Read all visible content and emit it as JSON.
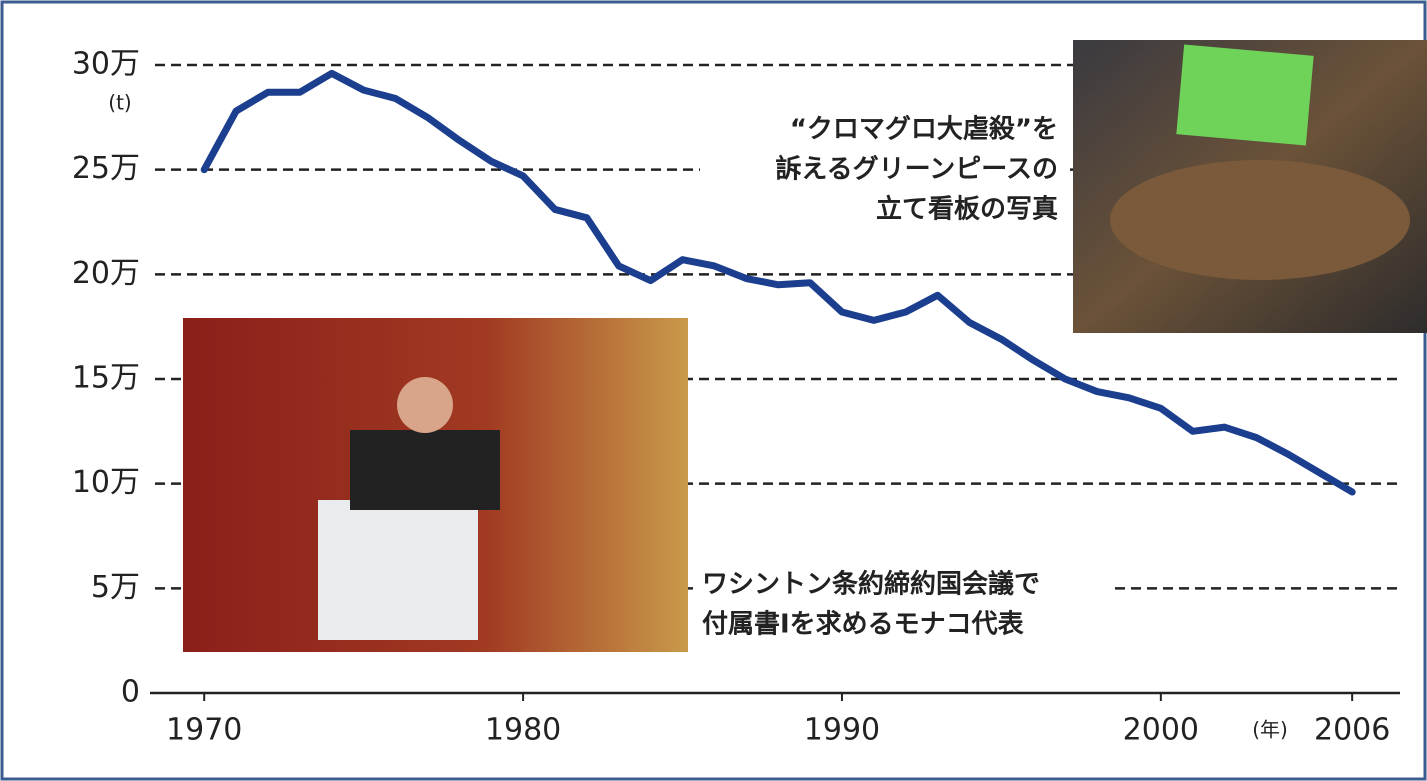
{
  "chart_data": {
    "type": "line",
    "y_label": "(t)",
    "x_label": "(年)",
    "x": [
      1970,
      1971,
      1972,
      1973,
      1974,
      1975,
      1976,
      1977,
      1978,
      1979,
      1980,
      1981,
      1982,
      1983,
      1984,
      1985,
      1986,
      1987,
      1988,
      1989,
      1990,
      1991,
      1992,
      1993,
      1994,
      1995,
      1996,
      1997,
      1998,
      1999,
      2000,
      2001,
      2002,
      2003,
      2004,
      2005,
      2006
    ],
    "series": [
      {
        "color": "#1b3f8e",
        "values": [
          250000,
          278000,
          287000,
          287000,
          296000,
          288000,
          284000,
          275000,
          264000,
          254000,
          247000,
          231000,
          227000,
          204000,
          197000,
          207000,
          204000,
          198000,
          195000,
          196000,
          182000,
          178000,
          182000,
          190000,
          177000,
          169000,
          159000,
          150000,
          144000,
          141000,
          136000,
          125000,
          127000,
          122000,
          114000,
          105000,
          96000
        ]
      }
    ],
    "xlim": [
      1968.3,
      2007.5
    ],
    "ylim": [
      0,
      300000
    ],
    "xticks": [
      1970,
      1980,
      1990,
      2000,
      2006
    ],
    "yticks": [
      0,
      {
        "value": 50000,
        "label": "5万"
      },
      {
        "value": 100000,
        "label": "10万"
      },
      {
        "value": 150000,
        "label": "15万"
      },
      {
        "value": 200000,
        "label": "20万"
      },
      {
        "value": 250000,
        "label": "25万"
      },
      {
        "value": 300000,
        "label": "30万"
      }
    ],
    "grid": true,
    "annotations": [
      {
        "lines": [
          "“クロマグロ大虐殺”を",
          "訴えるグリーンピースの",
          "立て看板の写真"
        ]
      },
      {
        "lines": [
          "ワシントン条約締約国会議で",
          "付属書Ⅰを求めるモナコ代表"
        ]
      }
    ]
  }
}
